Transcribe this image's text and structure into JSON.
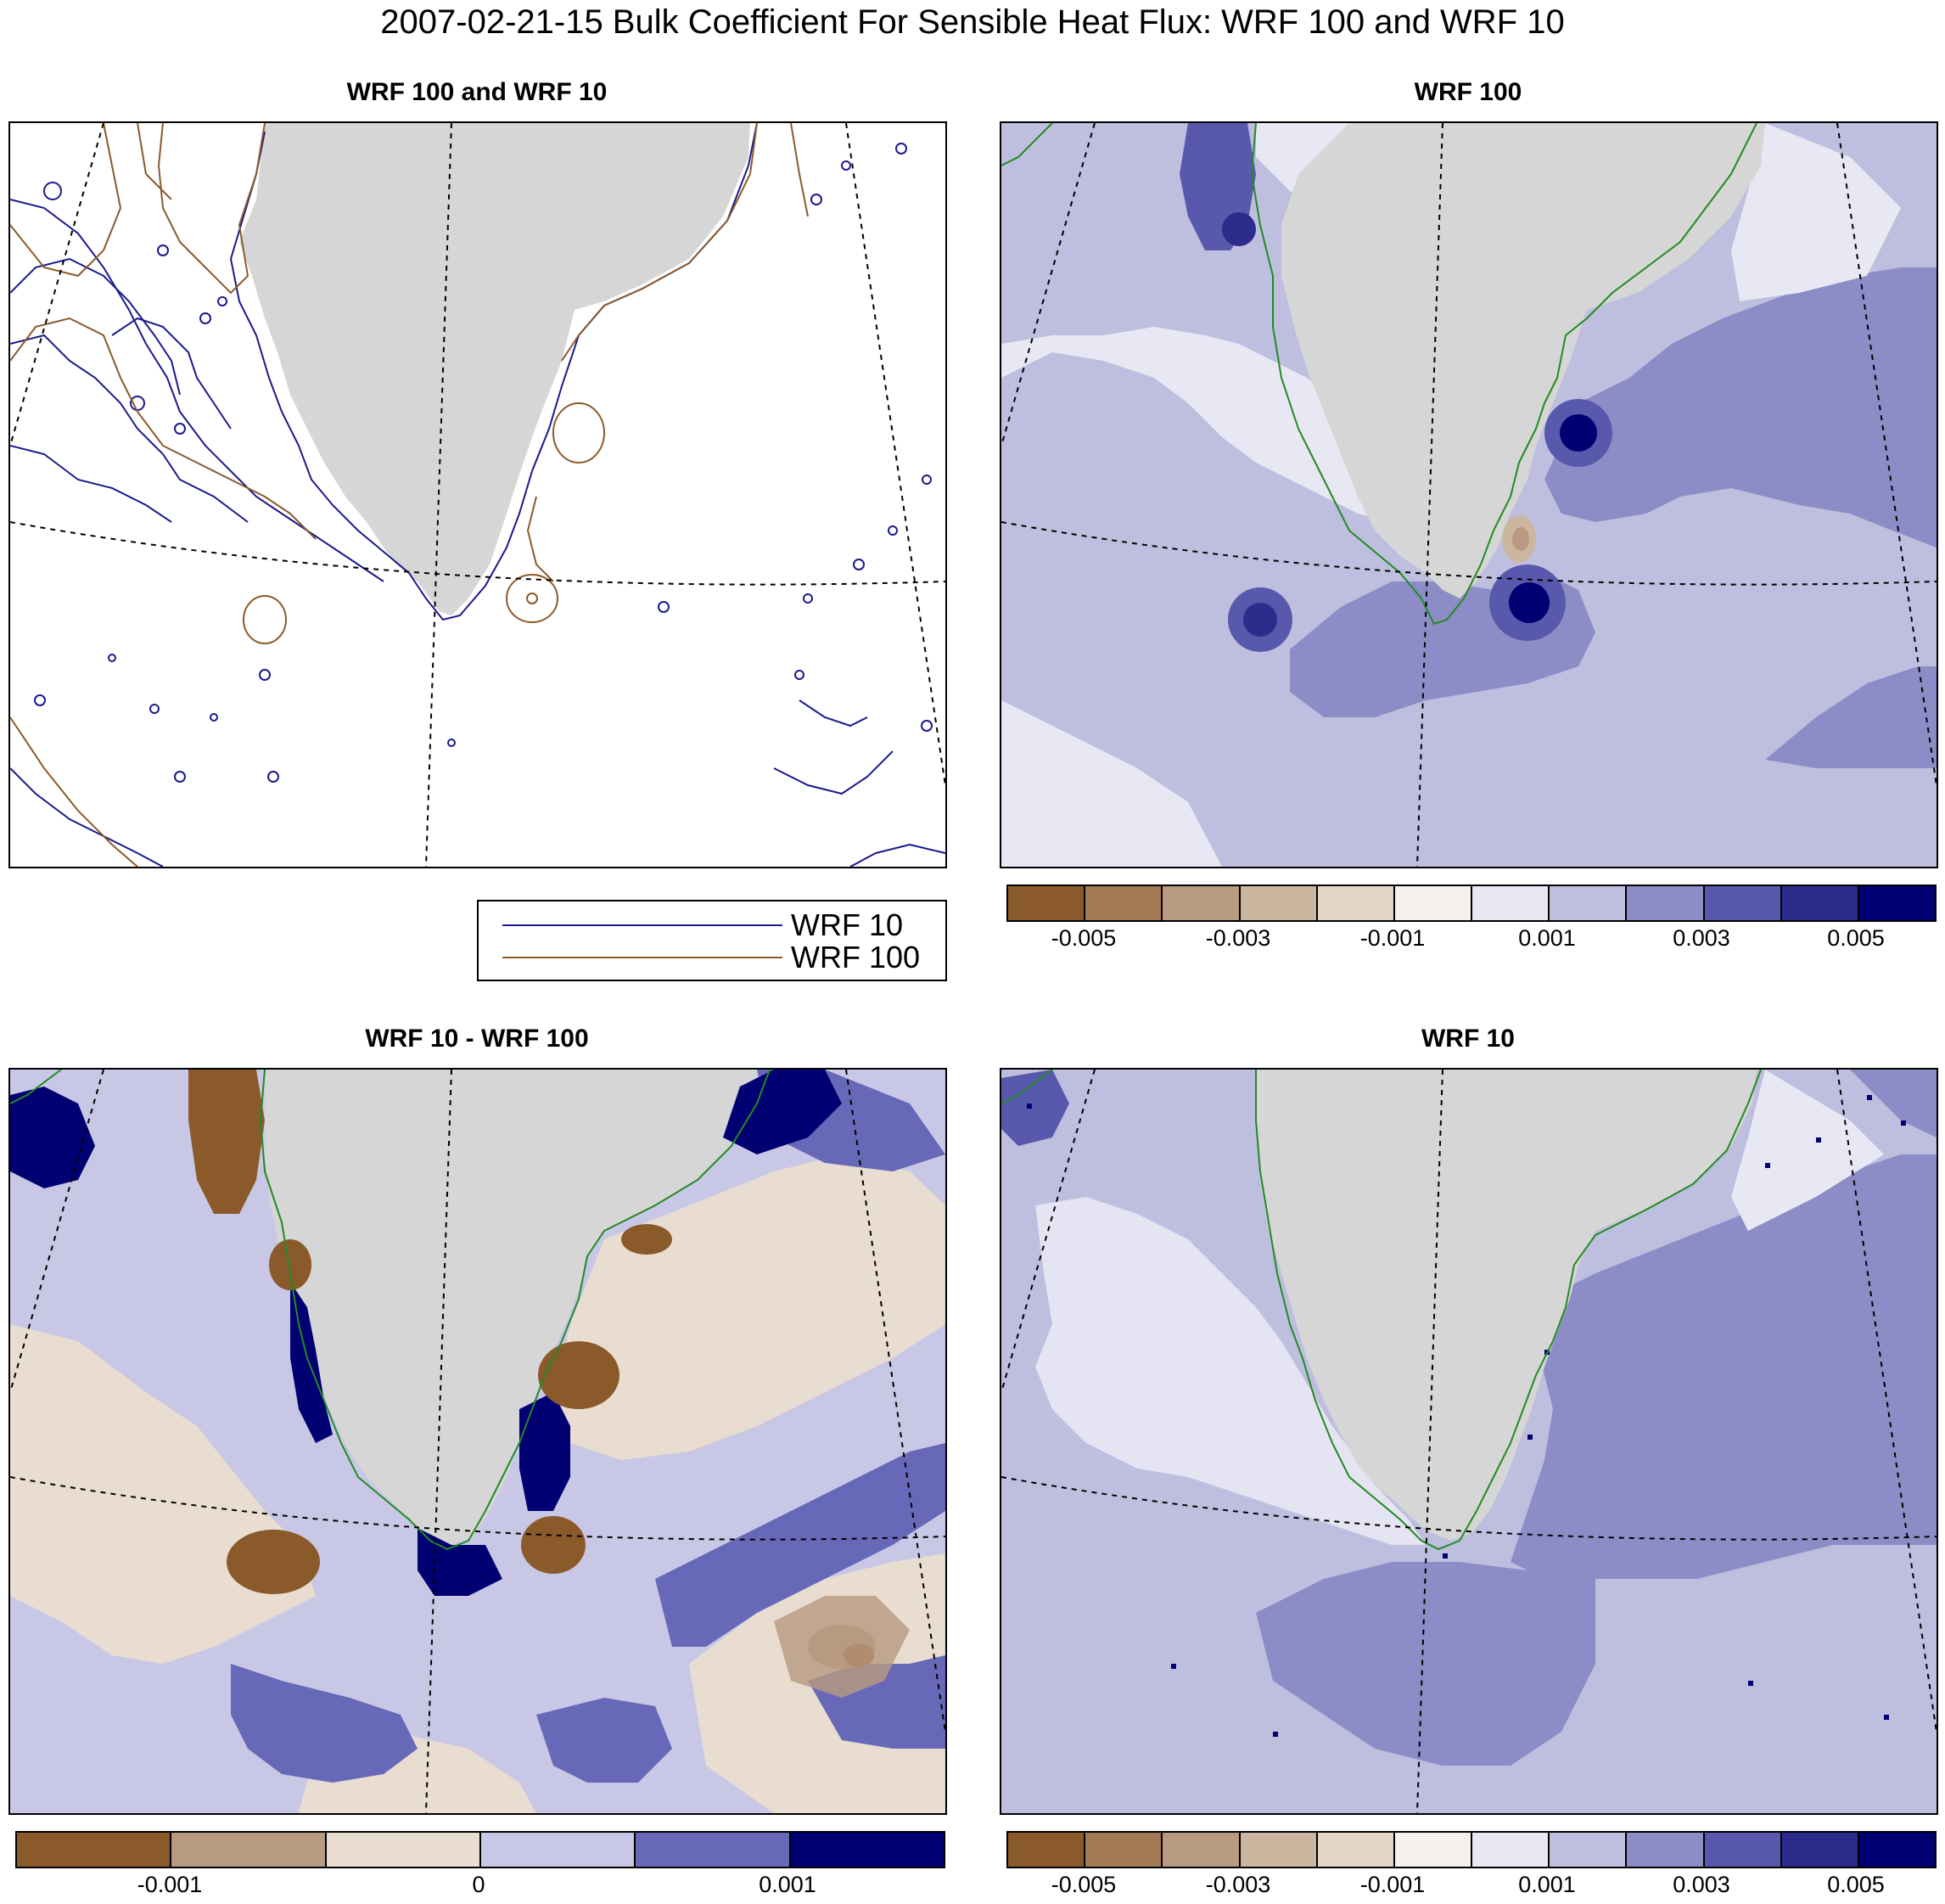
{
  "figure": {
    "title": "2007-02-21-15 Bulk Coefficient For Sensible Heat Flux: WRF 100 and WRF 10"
  },
  "colors": {
    "land": "#d6d6d6",
    "coastline": "#228b22",
    "wrf10_line": "#1a1a8c",
    "wrf100_line": "#8b5a2b",
    "gridline": "#000000"
  },
  "panels": {
    "top_left": {
      "title": "WRF 100 and WRF 10",
      "legend": [
        {
          "label": "WRF 10",
          "color": "#1a1a8c"
        },
        {
          "label": "WRF 100",
          "color": "#8b5a2b"
        }
      ]
    },
    "top_right": {
      "title": "WRF 100",
      "colorbar": {
        "colors": [
          "#8b5a2b",
          "#a47a55",
          "#b89a80",
          "#cdb6a0",
          "#e3d6c6",
          "#f5f2ee",
          "#e8e8f4",
          "#bebedf",
          "#8c8cc6",
          "#5858ad",
          "#2c2c8c",
          "#000073"
        ],
        "tick_labels": [
          "-0.005",
          "-0.003",
          "-0.001",
          "0.001",
          "0.003",
          "0.005"
        ]
      }
    },
    "bottom_left": {
      "title": "WRF 10 - WRF 100",
      "colorbar": {
        "colors": [
          "#8b5a2b",
          "#b89a80",
          "#e8ddd0",
          "#c8c8e6",
          "#6868b8",
          "#000073"
        ],
        "tick_labels": [
          "-0.001",
          "0",
          "0.001"
        ]
      }
    },
    "bottom_right": {
      "title": "WRF 10",
      "colorbar": {
        "colors": [
          "#8b5a2b",
          "#a47a55",
          "#b89a80",
          "#cdb6a0",
          "#e3d6c6",
          "#f5f2ee",
          "#e8e8f4",
          "#bebedf",
          "#8c8cc6",
          "#5858ad",
          "#2c2c8c",
          "#000073"
        ],
        "tick_labels": [
          "-0.005",
          "-0.003",
          "-0.001",
          "0.001",
          "0.003",
          "0.005"
        ]
      }
    }
  }
}
